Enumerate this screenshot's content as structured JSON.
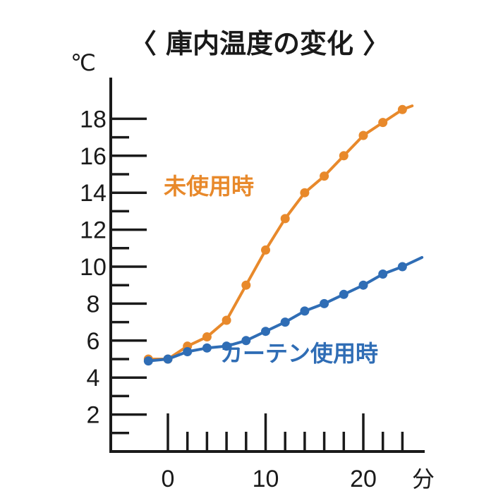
{
  "chart_data": {
    "type": "line",
    "title": "〈 庫内温度の変化 〉",
    "ylabel": "℃",
    "xlabel": "分",
    "ylim": [
      0,
      18.5
    ],
    "xlim": [
      -5,
      26
    ],
    "y_ticks": [
      2,
      4,
      6,
      8,
      10,
      12,
      14,
      16,
      18
    ],
    "x_ticks": [
      0,
      10,
      20
    ],
    "grid": false,
    "series": [
      {
        "name": "未使用時",
        "color": "#e8892b",
        "x": [
          -2,
          0,
          2,
          4,
          6,
          8,
          10,
          12,
          14,
          16,
          18,
          20,
          22,
          24,
          25
        ],
        "y": [
          5.0,
          5.0,
          5.7,
          6.2,
          7.1,
          9.0,
          10.9,
          12.6,
          14.0,
          14.9,
          16.0,
          17.1,
          17.8,
          18.5,
          18.7
        ]
      },
      {
        "name": "カーテン使用時",
        "color": "#2f6db5",
        "x": [
          -2,
          0,
          2,
          4,
          6,
          8,
          10,
          12,
          14,
          16,
          18,
          20,
          22,
          24,
          26
        ],
        "y": [
          4.9,
          5.0,
          5.4,
          5.6,
          5.7,
          6.0,
          6.5,
          7.0,
          7.6,
          8.0,
          8.5,
          9.0,
          9.6,
          10.0,
          10.5
        ]
      }
    ]
  }
}
